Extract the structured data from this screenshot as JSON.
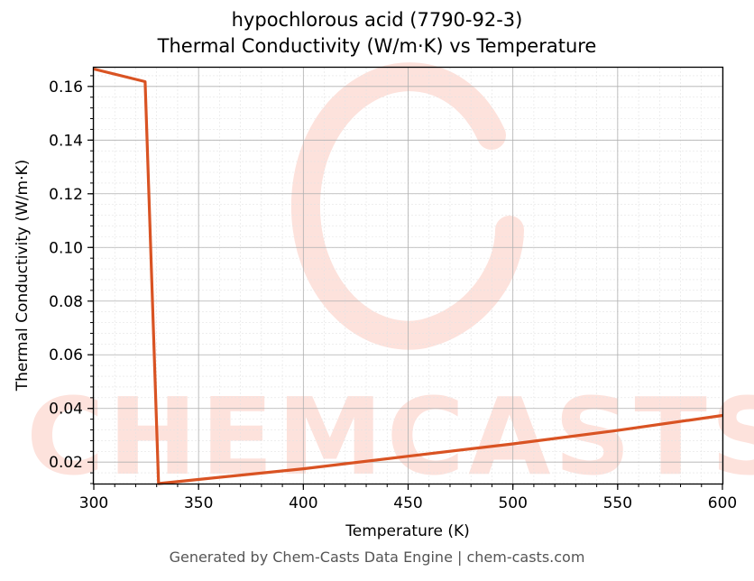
{
  "chart_data": {
    "type": "line",
    "title_line1": "hypochlorous acid (7790-92-3)",
    "title_line2": "Thermal Conductivity (W/m·K) vs Temperature",
    "xlabel": "Temperature (K)",
    "ylabel": "Thermal Conductivity (W/m·K)",
    "xlim": [
      300,
      600
    ],
    "ylim": [
      0.012,
      0.167
    ],
    "x_ticks": [
      300,
      350,
      400,
      450,
      500,
      550,
      600
    ],
    "y_ticks": [
      0.02,
      0.04,
      0.06,
      0.08,
      0.1,
      0.12,
      0.14,
      0.16
    ],
    "x_tick_labels": [
      "300",
      "350",
      "400",
      "450",
      "500",
      "550",
      "600"
    ],
    "y_tick_labels": [
      "0.02",
      "0.04",
      "0.06",
      "0.08",
      "0.10",
      "0.12",
      "0.14",
      "0.16"
    ],
    "grid": true,
    "series": [
      {
        "color": "#d95323",
        "x": [
          300,
          324.5,
          330.9,
          400,
          450,
          500,
          550,
          600
        ],
        "y": [
          0.1665,
          0.1618,
          0.012,
          0.0175,
          0.0222,
          0.0268,
          0.0318,
          0.0374
        ]
      }
    ]
  },
  "watermark": {
    "text": "CHEMCASTS",
    "color": "#fde2dc"
  },
  "footer": "Generated by Chem-Casts Data Engine | chem-casts.com"
}
